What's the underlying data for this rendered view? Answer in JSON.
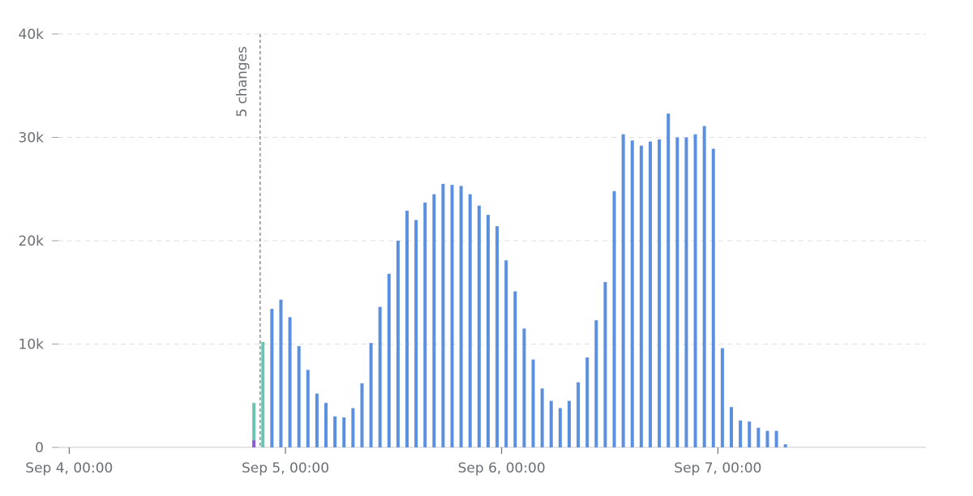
{
  "chart_data": {
    "type": "bar",
    "stacked": true,
    "x": [
      20,
      21,
      22,
      23,
      24,
      25,
      26,
      27,
      28,
      29,
      30,
      31,
      32,
      33,
      34,
      35,
      36,
      37,
      38,
      39,
      40,
      41,
      42,
      43,
      44,
      45,
      46,
      47,
      48,
      49,
      50,
      51,
      52,
      53,
      54,
      55,
      56,
      57,
      58,
      59,
      60,
      61,
      62,
      63,
      64,
      65,
      66,
      67,
      68,
      69,
      70,
      71,
      72,
      73,
      74,
      75,
      76,
      77,
      78,
      79
    ],
    "series": [
      {
        "color": "#8a5cd6",
        "values": [
          700,
          null,
          null,
          null,
          null,
          null,
          null,
          null,
          null,
          null,
          null,
          null,
          null,
          null,
          null,
          null,
          null,
          null,
          null,
          null,
          null,
          null,
          null,
          null,
          null,
          null,
          null,
          null,
          null,
          null,
          null,
          null,
          null,
          null,
          null,
          null,
          null,
          null,
          null,
          null,
          null,
          null,
          null,
          null,
          null,
          null,
          null,
          null,
          null,
          null,
          null,
          null,
          null,
          null,
          null,
          null,
          null,
          null,
          null,
          null
        ]
      },
      {
        "color": "#6cc4b1",
        "values": [
          3600,
          10200,
          null,
          null,
          null,
          null,
          null,
          null,
          null,
          null,
          null,
          null,
          null,
          null,
          null,
          null,
          null,
          null,
          null,
          null,
          null,
          null,
          null,
          null,
          null,
          null,
          null,
          null,
          null,
          null,
          null,
          null,
          null,
          null,
          null,
          null,
          null,
          null,
          null,
          null,
          null,
          null,
          null,
          null,
          null,
          null,
          null,
          null,
          null,
          null,
          null,
          null,
          null,
          null,
          null,
          null,
          null,
          null,
          null,
          null
        ]
      },
      {
        "color": "#5b8fe0",
        "values": [
          null,
          null,
          13400,
          14300,
          12600,
          9800,
          7500,
          5200,
          4300,
          3000,
          2900,
          3800,
          6200,
          10100,
          13600,
          16800,
          20000,
          22900,
          22000,
          23700,
          24500,
          25500,
          25400,
          25300,
          24500,
          23400,
          22500,
          21400,
          18100,
          15100,
          11500,
          8500,
          5700,
          4500,
          3800,
          4500,
          6300,
          8700,
          12300,
          16000,
          24800,
          30300,
          29700,
          29200,
          29600,
          29800,
          32300,
          30000,
          30000,
          30300,
          31100,
          28900,
          9600,
          3900,
          2600,
          2500,
          1900,
          1600,
          1600,
          300
        ]
      }
    ],
    "xlim": [
      -1.2,
      95.1
    ],
    "xticks": [
      {
        "value": 0,
        "label": "Sep 4, 00:00"
      },
      {
        "value": 24,
        "label": "Sep 5, 00:00"
      },
      {
        "value": 48,
        "label": "Sep 6, 00:00"
      },
      {
        "value": 72,
        "label": "Sep 7, 00:00"
      }
    ],
    "ylim": [
      0,
      40000
    ],
    "yticks": [
      {
        "value": 0,
        "label": "0"
      },
      {
        "value": 10000,
        "label": "10k"
      },
      {
        "value": 20000,
        "label": "20k"
      },
      {
        "value": 30000,
        "label": "30k"
      },
      {
        "value": 40000,
        "label": "40k"
      }
    ],
    "grid": true,
    "annotations": [
      {
        "x": 21.2,
        "text": "5 changes"
      }
    ]
  }
}
